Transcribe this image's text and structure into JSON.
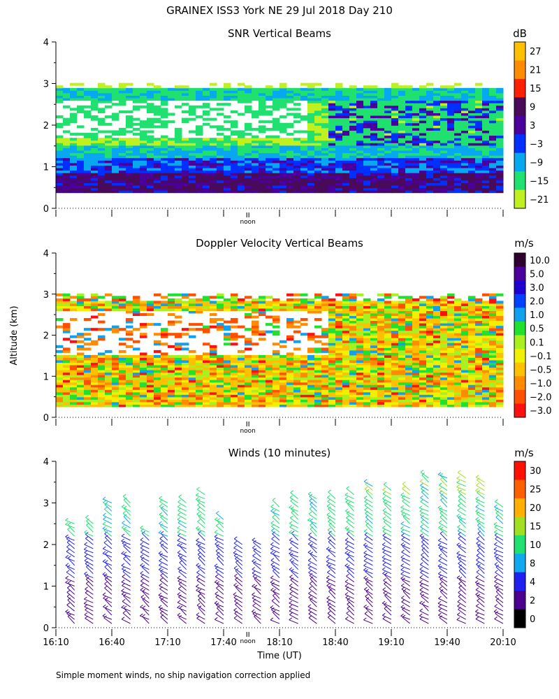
{
  "figure": {
    "title": "GRAINEX ISS3 York NE  29 Jul 2018 Day 210",
    "footnote": "Simple moment winds, no ship navigation correction applied",
    "shared_ylabel": "Altitude (km)",
    "shared_xlabel": "Time (UT)",
    "x_tick_labels": [
      "16:10",
      "16:40",
      "17:10",
      "17:40",
      "18:10",
      "18:40",
      "19:10",
      "19:40",
      "20:10"
    ],
    "noon_label": "noon"
  },
  "chart_data": [
    {
      "type": "heatmap",
      "title": "SNR Vertical Beams",
      "units": "dB",
      "xlim": [
        "16:10",
        "20:10"
      ],
      "ylim": [
        0,
        4
      ],
      "y_ticks": [
        0,
        1,
        2,
        3,
        4
      ],
      "colorbar_labels": [
        "27",
        "21",
        "15",
        "9",
        "3",
        "−3",
        "−9",
        "−15",
        "−21"
      ],
      "colorbar_colors": [
        "#ffc000",
        "#ff8c00",
        "#ff2000",
        "#4a0a5a",
        "#4b009e",
        "#0030ff",
        "#08a8f0",
        "#20e070",
        "#c0f020"
      ],
      "description_values": {
        "lowest_layer_km": [
          0.2,
          0.7
        ],
        "cloud_top_km": 2.8,
        "peak_snr_db": 9
      }
    },
    {
      "type": "heatmap",
      "title": "Doppler Velocity Vertical Beams",
      "units": "m/s",
      "xlim": [
        "16:10",
        "20:10"
      ],
      "ylim": [
        0,
        4
      ],
      "y_ticks": [
        0,
        1,
        2,
        3,
        4
      ],
      "colorbar_labels": [
        "10.0",
        "5.0",
        "3.0",
        "2.0",
        "1.0",
        "0.5",
        "0.1",
        "−0.1",
        "−0.5",
        "−1.0",
        "−2.0",
        "−3.0"
      ],
      "colorbar_colors": [
        "#300030",
        "#4b009e",
        "#2000d0",
        "#0040ff",
        "#10a0f0",
        "#20e030",
        "#a8f020",
        "#f0f000",
        "#ffc000",
        "#ff8c00",
        "#ff5000",
        "#ff1010"
      ]
    },
    {
      "type": "scatter",
      "title": "Winds (10 minutes)",
      "units": "m/s",
      "xlim": [
        "16:10",
        "20:10"
      ],
      "ylim": [
        0,
        4
      ],
      "y_ticks": [
        0,
        1,
        2,
        3,
        4
      ],
      "colorbar_labels": [
        "30",
        "25",
        "20",
        "15",
        "10",
        "8",
        "4",
        "2",
        "0"
      ],
      "colorbar_colors": [
        "#ff1000",
        "#ff6000",
        "#ffb000",
        "#a0e020",
        "#20e070",
        "#10a8f0",
        "#2020f0",
        "#4b0090",
        "#000000"
      ],
      "profile_times": [
        "16:20",
        "16:30",
        "16:40",
        "16:50",
        "17:00",
        "17:10",
        "17:20",
        "17:30",
        "17:40",
        "17:50",
        "18:00",
        "18:10",
        "18:20",
        "18:30",
        "18:40",
        "18:50",
        "19:00",
        "19:10",
        "19:20",
        "19:30",
        "19:40",
        "19:50",
        "20:00",
        "20:10"
      ],
      "profile_top_km": [
        2.6,
        2.6,
        3.1,
        3.1,
        2.4,
        3.1,
        3.1,
        3.3,
        2.7,
        2.1,
        2.1,
        3.0,
        3.2,
        3.2,
        3.2,
        3.3,
        3.5,
        3.4,
        3.4,
        3.7,
        3.7,
        3.7,
        3.6,
        3.0
      ]
    }
  ]
}
